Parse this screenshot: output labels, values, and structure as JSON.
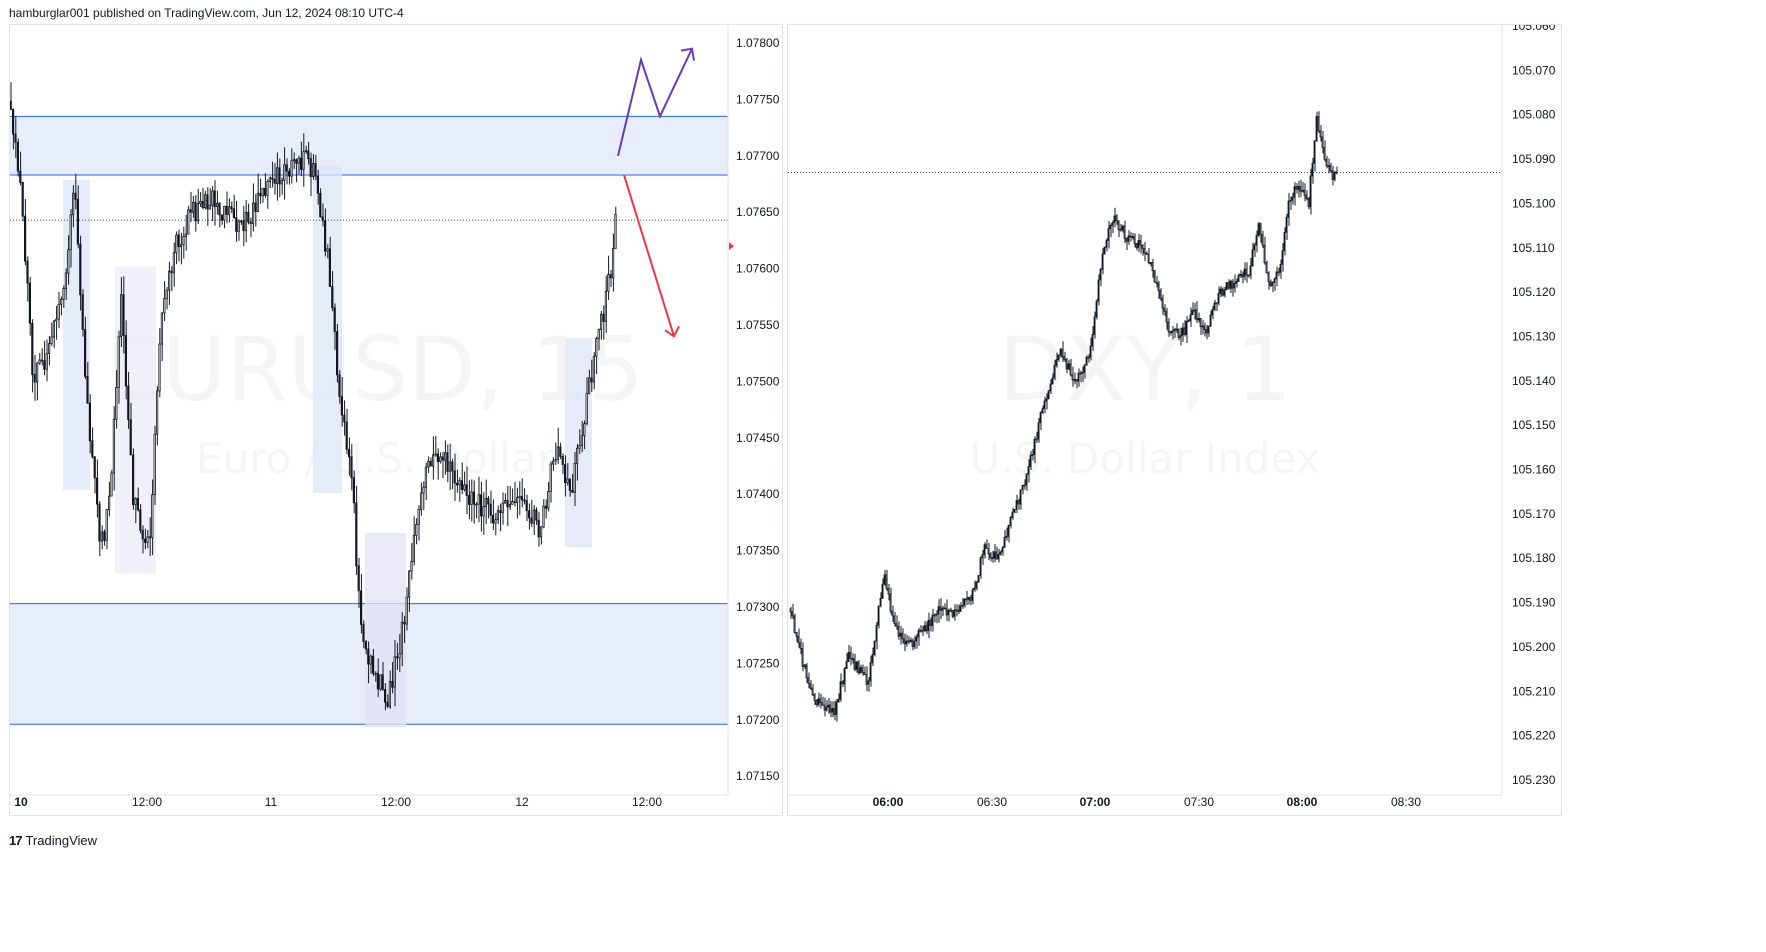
{
  "header": {
    "text": "hamburglar001 published on TradingView.com, Jun 12, 2024 08:10 UTC-4"
  },
  "footer": {
    "logo": "17",
    "brand": "TradingView"
  },
  "chart_data": [
    {
      "type": "candlestick",
      "symbol": "EURUSD, 15",
      "description": "Euro / U.S. Dollar",
      "y_axis": {
        "side": "right",
        "min": 1.07125,
        "max": 1.07825,
        "ticks": [
          "1.07800",
          "1.07750",
          "1.07700",
          "1.07650",
          "1.07600",
          "1.07550",
          "1.07500",
          "1.07450",
          "1.07400",
          "1.07350",
          "1.07300",
          "1.07250",
          "1.07200",
          "1.07150"
        ]
      },
      "x_axis": {
        "ticks": [
          {
            "label": "10",
            "bold": true
          },
          {
            "label": "12:00",
            "bold": false
          },
          {
            "label": "11",
            "bold": false
          },
          {
            "label": "12:00",
            "bold": false
          },
          {
            "label": "12",
            "bold": false
          },
          {
            "label": "12:00",
            "bold": false
          }
        ]
      },
      "last_price": 1.07643,
      "zones": [
        {
          "from": 1.07683,
          "to": 1.07735,
          "color": "#d5ddfa"
        },
        {
          "from": 1.07196,
          "to": 1.07303,
          "color": "#d5ddfa"
        }
      ],
      "projection_up": [
        1.077,
        1.07785,
        1.07735,
        1.07795
      ],
      "projection_down": [
        1.07683,
        1.0754
      ],
      "colors": {
        "zone_line": "#2962ff",
        "up_arrow": "#673ab7",
        "down_arrow": "#f23645",
        "candle": "#131722"
      }
    },
    {
      "type": "candlestick",
      "symbol": "DXY, 1",
      "description": "U.S. Dollar Index",
      "y_axis": {
        "side": "right",
        "inverted": true,
        "min": 105.058,
        "max": 105.233,
        "ticks": [
          "105.060",
          "105.070",
          "105.080",
          "105.090",
          "105.100",
          "105.110",
          "105.120",
          "105.130",
          "105.140",
          "105.150",
          "105.160",
          "105.170",
          "105.180",
          "105.190",
          "105.200",
          "105.210",
          "105.220",
          "105.230"
        ]
      },
      "x_axis": {
        "ticks": [
          {
            "label": "06:00",
            "bold": true
          },
          {
            "label": "06:30",
            "bold": false
          },
          {
            "label": "07:00",
            "bold": true
          },
          {
            "label": "07:30",
            "bold": false
          },
          {
            "label": "08:00",
            "bold": true
          },
          {
            "label": "08:30",
            "bold": false
          }
        ]
      },
      "last_price": 105.093
    }
  ]
}
